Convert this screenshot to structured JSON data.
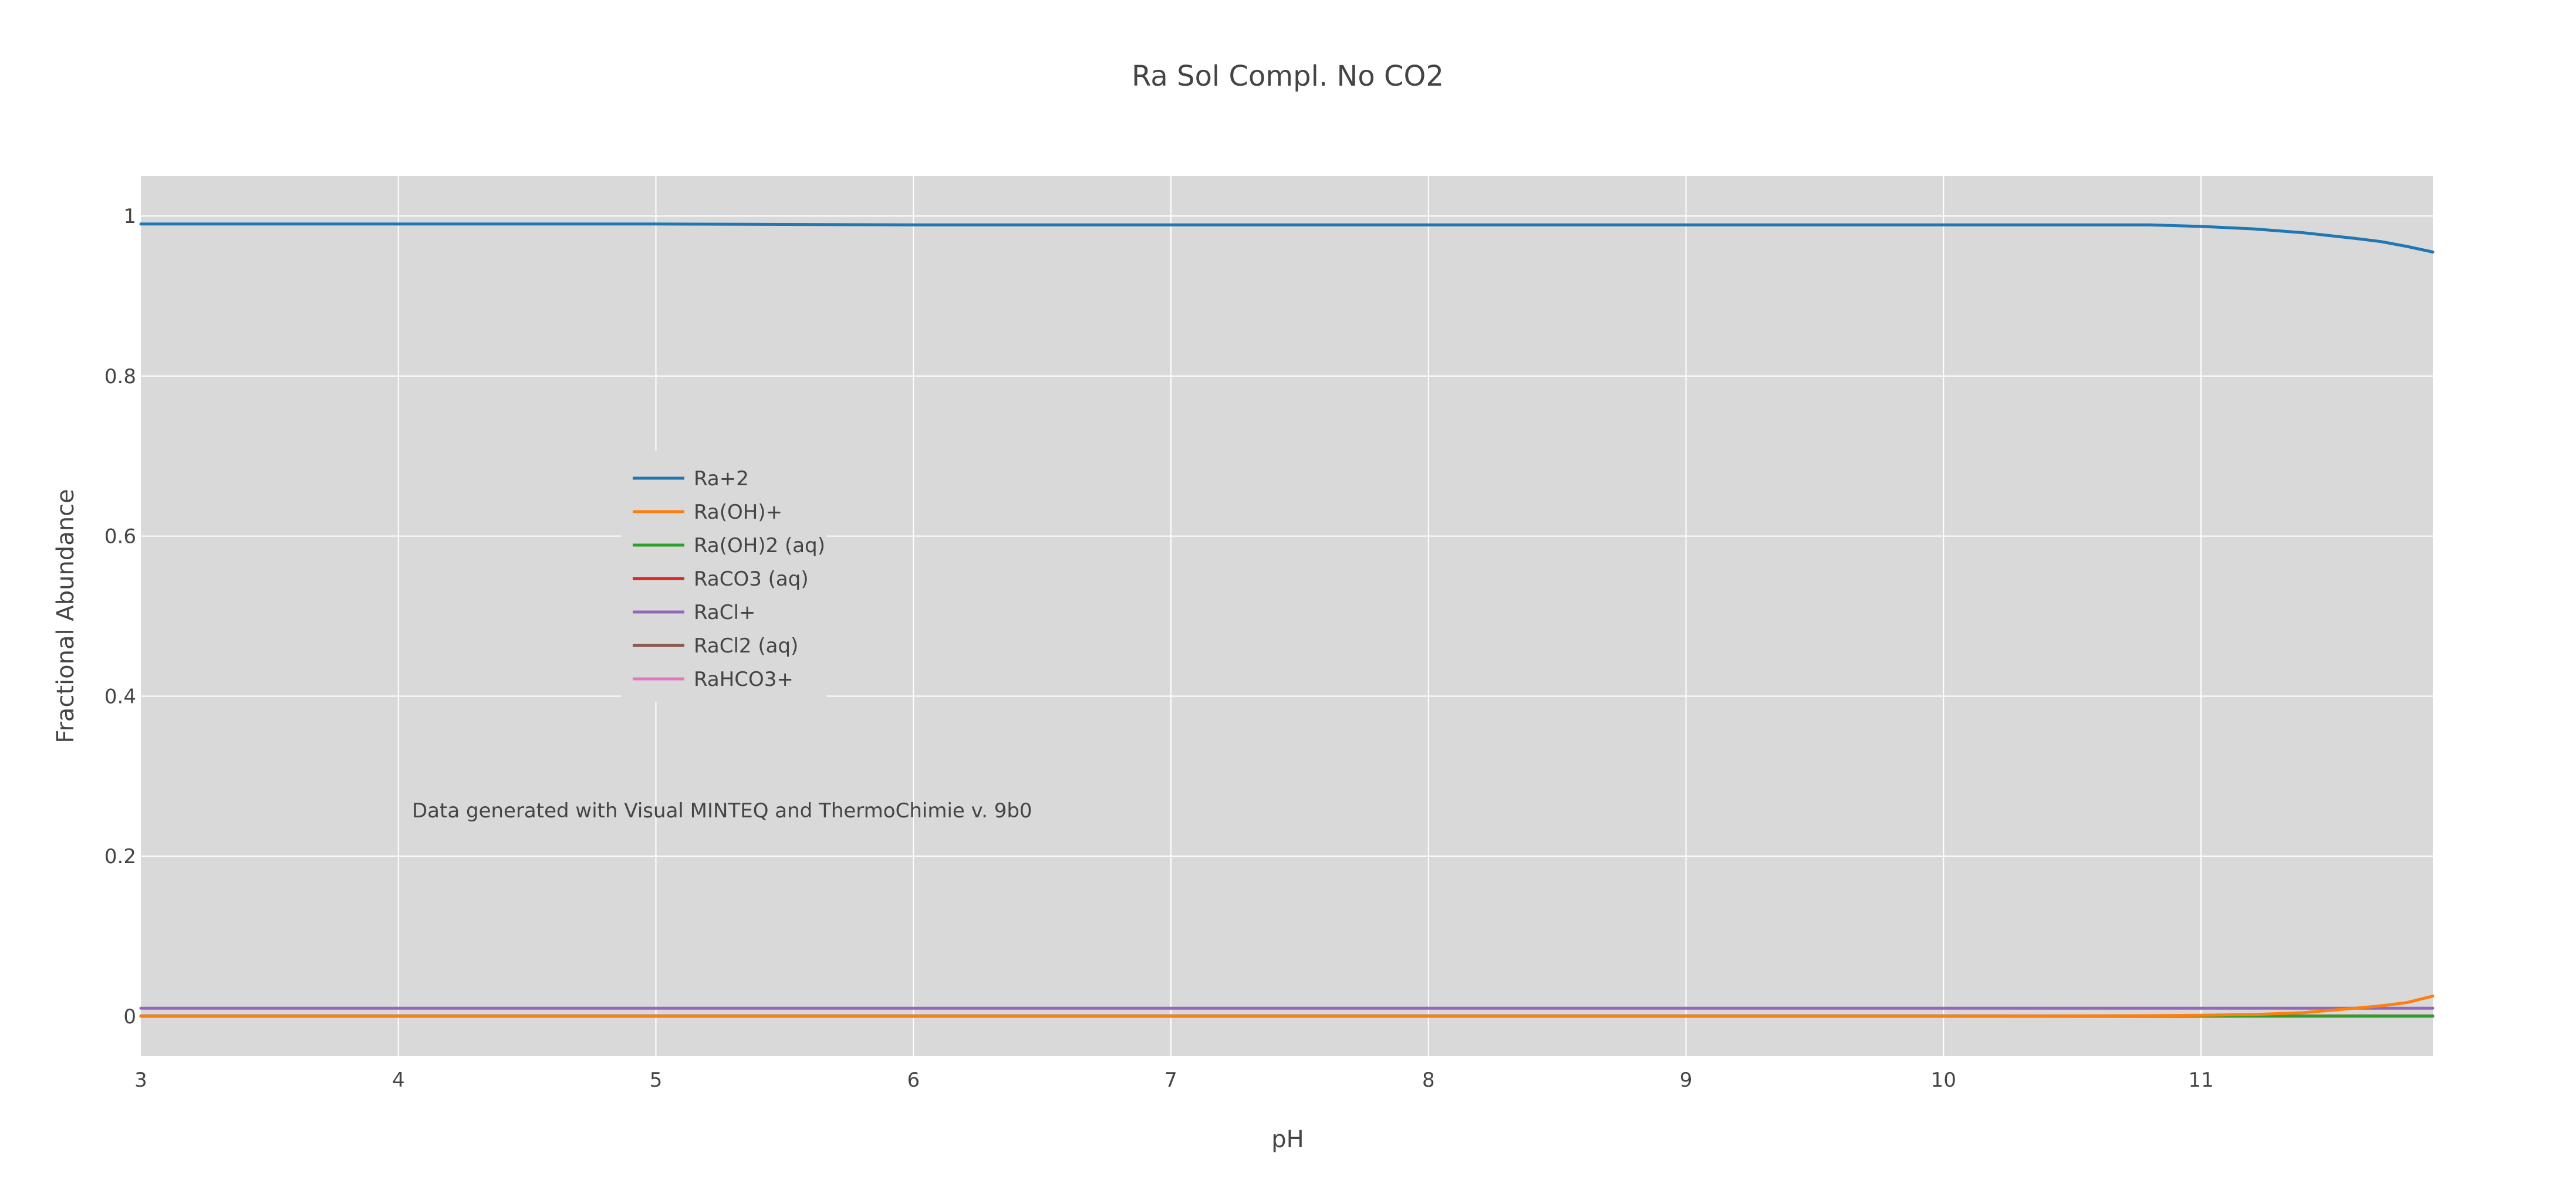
{
  "chart_data": {
    "type": "line",
    "title": "Ra Sol Compl. No CO2",
    "xlabel": "pH",
    "ylabel": "Fractional Abundance",
    "xlim": [
      3,
      11.9
    ],
    "ylim": [
      -0.05,
      1.05
    ],
    "xticks": [
      "3",
      "4",
      "5",
      "6",
      "7",
      "8",
      "9",
      "10",
      "11"
    ],
    "yticks": [
      "0",
      "0.2",
      "0.4",
      "0.6",
      "0.8",
      "1"
    ],
    "grid": true,
    "legend_position": "middle-left",
    "annotation": "Data generated with Visual MINTEQ and ThermoChimie v. 9b0",
    "x": [
      3,
      4,
      5,
      6,
      7,
      8,
      9,
      10,
      10.5,
      10.8,
      11,
      11.2,
      11.4,
      11.6,
      11.7,
      11.8,
      11.9
    ],
    "series": [
      {
        "name": "Ra+2",
        "color": "#1f77b4",
        "values": [
          0.99,
          0.99,
          0.99,
          0.989,
          0.989,
          0.989,
          0.989,
          0.989,
          0.989,
          0.989,
          0.987,
          0.984,
          0.979,
          0.972,
          0.968,
          0.962,
          0.955
        ]
      },
      {
        "name": "Ra(OH)+",
        "color": "#ff7f0e",
        "values": [
          0,
          0,
          0,
          0,
          0,
          0,
          0,
          0,
          0.0003,
          0.0006,
          0.0012,
          0.002,
          0.0045,
          0.01,
          0.013,
          0.017,
          0.025
        ]
      },
      {
        "name": "Ra(OH)2 (aq)",
        "color": "#2ca02c",
        "values": [
          0,
          0,
          0,
          0,
          0,
          0,
          0,
          0,
          0,
          0,
          0,
          0,
          0,
          0,
          0,
          0,
          0
        ]
      },
      {
        "name": "RaCO3 (aq)",
        "color": "#d62728",
        "values": [
          0,
          0,
          0,
          0,
          0,
          0,
          0,
          0,
          0,
          0,
          0,
          0,
          0,
          0,
          0,
          0,
          0
        ]
      },
      {
        "name": "RaCl+",
        "color": "#9467bd",
        "values": [
          0.01,
          0.01,
          0.01,
          0.01,
          0.01,
          0.01,
          0.01,
          0.01,
          0.01,
          0.01,
          0.01,
          0.01,
          0.01,
          0.01,
          0.01,
          0.01,
          0.01
        ]
      },
      {
        "name": "RaCl2 (aq)",
        "color": "#8c564b",
        "values": [
          0.0003,
          0.0003,
          0.0003,
          0.0003,
          0.0003,
          0.0003,
          0.0003,
          0.0003,
          0.0003,
          0.0003,
          0.0003,
          0.0003,
          0.0003,
          0.0003,
          0.0003,
          0.0003,
          0.0003
        ]
      },
      {
        "name": "RaHCO3+",
        "color": "#e377c2",
        "values": [
          0,
          0,
          0,
          0,
          0,
          0,
          0,
          0,
          0,
          0,
          0,
          0,
          0,
          0,
          0,
          0,
          0
        ]
      }
    ]
  }
}
